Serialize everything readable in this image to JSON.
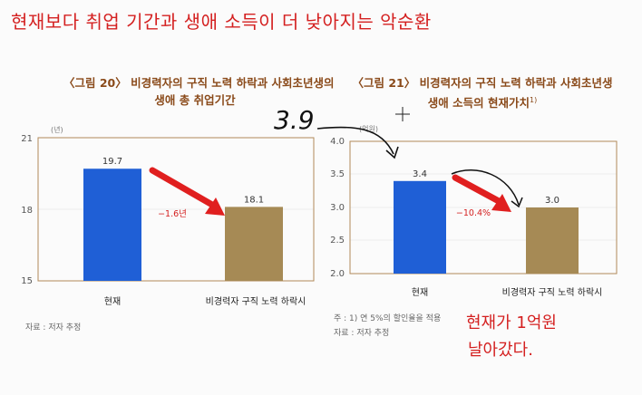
{
  "headline": "현재보다 취업 기간과 생애 소득이 더 낮아지는 악순환",
  "annotations": {
    "handwritten_number": "3.9",
    "handwritten_note_line1": "현재가 1억원",
    "handwritten_note_line2": "날아갔다."
  },
  "colors": {
    "headline": "#d42020",
    "title": "#8a4a1a",
    "bar_current": "#1f5fd6",
    "bar_no_career": "#a68a55",
    "arrow": "#e01f1f",
    "change_label": "#d42020",
    "axis_frame": "#b08a5a"
  },
  "chart_data": [
    {
      "type": "bar",
      "title_line1": "〈그림 20〉 비경력자의 구직 노력 하락과 사회초년생의",
      "title_line2": "생애 총 취업기간",
      "unit": "(년)",
      "categories": [
        "현재",
        "비경력자 구직 노력 하락시"
      ],
      "values": [
        19.7,
        18.1
      ],
      "value_labels": [
        "19.7",
        "18.1"
      ],
      "ylim": [
        15,
        21
      ],
      "yticks": [
        15,
        18,
        21
      ],
      "ytick_labels": [
        "15",
        "18",
        "21"
      ],
      "change_label": "−1.6년",
      "source": "자료 : 저자 추정"
    },
    {
      "type": "bar",
      "title_line1": "〈그림 21〉 비경력자의 구직 노력 하락과 사회초년생",
      "title_line2": "생애 소득의 현재가치",
      "title_sup": "1)",
      "unit": "(억원)",
      "categories": [
        "현재",
        "비경력자 구직 노력 하락시"
      ],
      "values": [
        3.4,
        3.0
      ],
      "value_labels": [
        "3.4",
        "3.0"
      ],
      "ylim": [
        2.0,
        4.0
      ],
      "yticks": [
        2.0,
        2.5,
        3.0,
        3.5,
        4.0
      ],
      "ytick_labels": [
        "2.0",
        "2.5",
        "3.0",
        "3.5",
        "4.0"
      ],
      "change_label": "−10.4%",
      "note": "주 : 1) 연 5%의 할인율을 적용",
      "source": "자료 : 저자 추정"
    }
  ]
}
